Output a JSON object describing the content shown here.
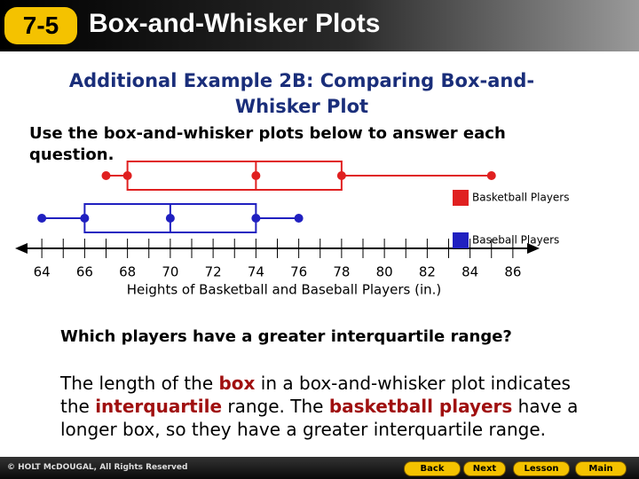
{
  "header": {
    "badge": "7-5",
    "title": "Box-and-Whisker Plots"
  },
  "subtitle": "Additional Example 2B: Comparing Box-and-Whisker Plot",
  "instructions": "Use the box-and-whisker plots below to answer each question.",
  "chart_data": {
    "type": "box",
    "xlabel": "Heights of Basketball and Baseball Players (in.)",
    "xlim": [
      63,
      87
    ],
    "xticks": [
      64,
      66,
      68,
      70,
      72,
      74,
      76,
      78,
      80,
      82,
      84,
      86
    ],
    "xminor_ticks": [
      65,
      67,
      69,
      71,
      73,
      75,
      77,
      79,
      81,
      83,
      85
    ],
    "legend": "right",
    "series": [
      {
        "name": "Basketball Players",
        "color": "#e02020",
        "values": [
          67,
          68,
          74,
          78,
          85
        ]
      },
      {
        "name": "Baseball Players",
        "color": "#2020c0",
        "values": [
          64,
          66,
          70,
          74,
          76
        ]
      }
    ]
  },
  "question": "Which players have a greater interquartile range?",
  "answer": [
    {
      "text": "The length of the ",
      "emphasis": false
    },
    {
      "text": "box",
      "emphasis": true
    },
    {
      "text": " in a box-and-whisker plot indicates the ",
      "emphasis": false
    },
    {
      "text": "interquartile",
      "emphasis": true
    },
    {
      "text": " range. The ",
      "emphasis": false
    },
    {
      "text": "basketball players",
      "emphasis": true
    },
    {
      "text": " have a longer box, so they have a greater interquartile range.",
      "emphasis": false
    }
  ],
  "footer": {
    "copyright": "© HOLT McDOUGAL, All Rights Reserved"
  },
  "nav": [
    "Back",
    "Next",
    "Lesson",
    "Main"
  ]
}
